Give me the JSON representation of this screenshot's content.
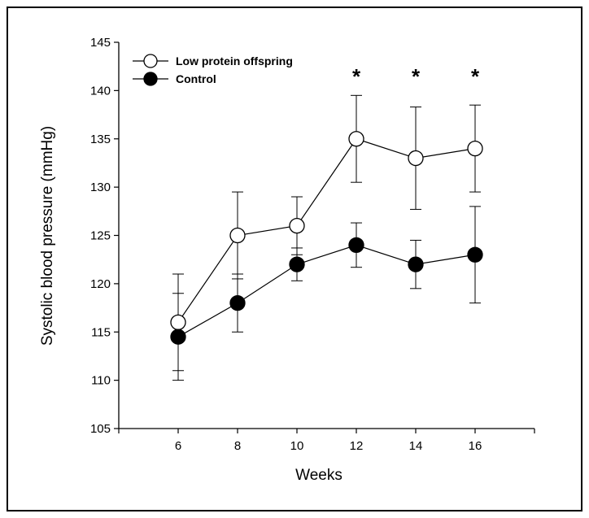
{
  "chart_data": {
    "type": "line",
    "xlabel": "Weeks",
    "ylabel": "Systolic blood pressure (mmHg)",
    "x": [
      6,
      8,
      10,
      12,
      14,
      16
    ],
    "xlim": [
      4,
      18
    ],
    "ylim": [
      105,
      145
    ],
    "xticks": [
      6,
      8,
      10,
      12,
      14,
      16
    ],
    "yticks": [
      105,
      110,
      115,
      120,
      125,
      130,
      135,
      140,
      145
    ],
    "grid": false,
    "legend_position": "top-left",
    "series": [
      {
        "name": "Low protein offspring",
        "marker": "open-circle",
        "values": [
          116,
          125,
          126,
          135,
          133,
          134
        ],
        "error": [
          5.0,
          4.5,
          3.0,
          4.5,
          5.3,
          4.5
        ]
      },
      {
        "name": "Control",
        "marker": "filled-circle",
        "values": [
          114.5,
          118,
          122,
          124,
          122,
          123
        ],
        "error": [
          4.5,
          3.0,
          1.7,
          2.3,
          2.5,
          5.0
        ]
      }
    ],
    "annotations": [
      {
        "x": 12,
        "text": "*"
      },
      {
        "x": 14,
        "text": "*"
      },
      {
        "x": 16,
        "text": "*"
      }
    ]
  }
}
